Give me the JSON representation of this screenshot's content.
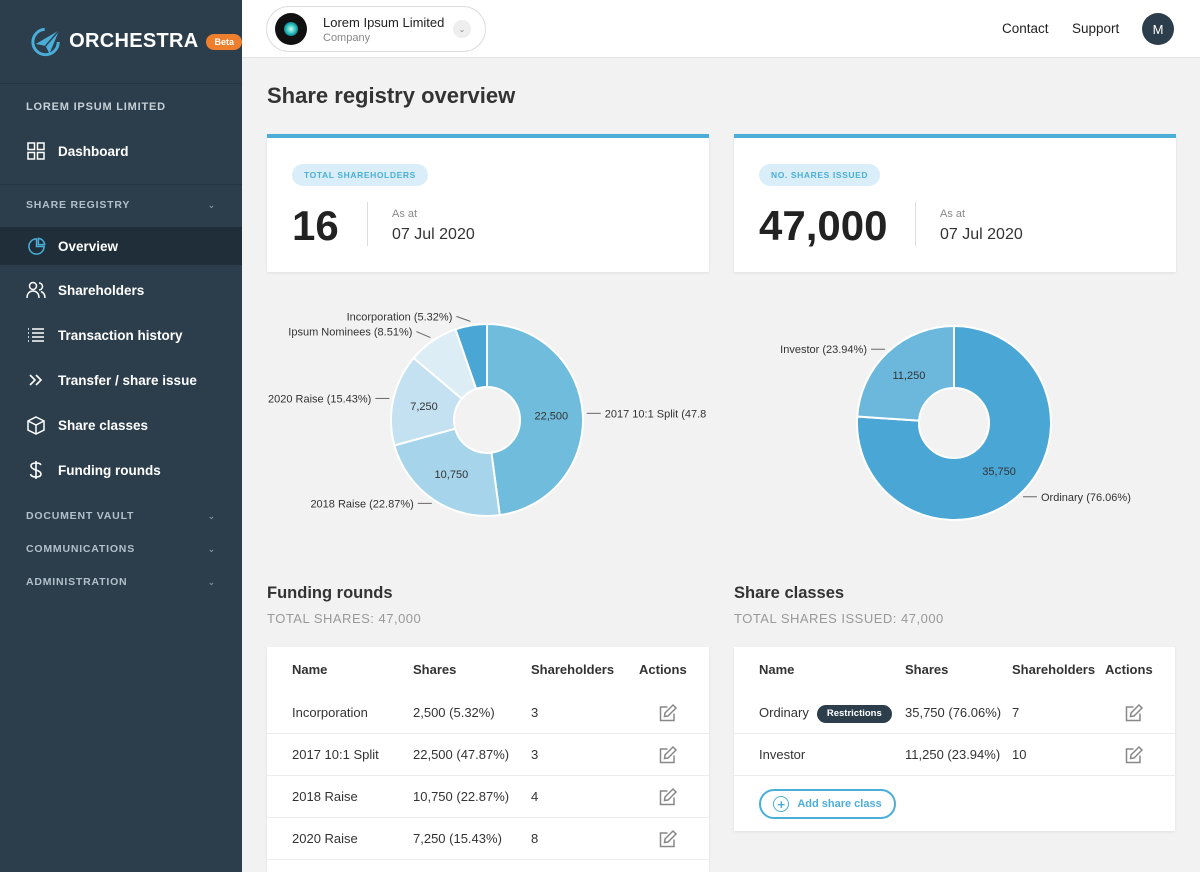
{
  "brand": {
    "name": "ORCHESTRA",
    "badge": "Beta"
  },
  "sidebar": {
    "org_label": "LOREM IPSUM LIMITED",
    "dashboard": "Dashboard",
    "share_registry_label": "SHARE REGISTRY",
    "items": [
      {
        "label": "Overview",
        "icon": "pie-chart-icon",
        "active": true
      },
      {
        "label": "Shareholders",
        "icon": "users-icon"
      },
      {
        "label": "Transaction history",
        "icon": "list-icon"
      },
      {
        "label": "Transfer / share issue",
        "icon": "double-chevron-right-icon"
      },
      {
        "label": "Share classes",
        "icon": "cube-icon"
      },
      {
        "label": "Funding rounds",
        "icon": "dollar-icon"
      }
    ],
    "sections": [
      "DOCUMENT VAULT",
      "COMMUNICATIONS",
      "ADMINISTRATION"
    ]
  },
  "topbar": {
    "company_name": "Lorem Ipsum Limited",
    "company_type": "Company",
    "contact": "Contact",
    "support": "Support",
    "avatar_initial": "M"
  },
  "page": {
    "title": "Share registry overview"
  },
  "stats": {
    "shareholders": {
      "label": "TOTAL SHAREHOLDERS",
      "value": "16",
      "asat_label": "As at",
      "date": "07 Jul 2020"
    },
    "shares": {
      "label": "NO. SHARES ISSUED",
      "value": "47,000",
      "asat_label": "As at",
      "date": "07 Jul 2020"
    }
  },
  "chart_data": [
    {
      "type": "pie",
      "categories": [
        "2017 10:1 Split",
        "2018 Raise",
        "2020 Raise",
        "Ipsum Nominees",
        "Incorporation"
      ],
      "values": [
        22500,
        10750,
        7250,
        4000,
        2500
      ],
      "labels": [
        "2017 10:1 Split (47.8",
        "2018 Raise (22.87%)",
        "2020 Raise (15.43%)",
        "Ipsum Nominees (8.51%)",
        "Incorporation (5.32%)"
      ],
      "slice_labels": [
        "22,500",
        "10,750",
        "7,250",
        "",
        ""
      ],
      "colors": [
        "#70bcdc",
        "#a6d4ea",
        "#c3e1f0",
        "#dcedf6",
        "#4aa6d5"
      ]
    },
    {
      "type": "pie",
      "categories": [
        "Ordinary",
        "Investor"
      ],
      "values": [
        35750,
        11250
      ],
      "labels": [
        "Ordinary (76.06%)",
        "Investor (23.94%)"
      ],
      "slice_labels": [
        "35,750",
        "11,250"
      ],
      "colors": [
        "#4aa6d5",
        "#6cb8dc"
      ]
    }
  ],
  "funding": {
    "title": "Funding rounds",
    "subtitle": "TOTAL SHARES: 47,000",
    "headers": [
      "Name",
      "Shares",
      "Shareholders",
      "Actions"
    ],
    "rows": [
      {
        "name": "Incorporation",
        "shares": "2,500 (5.32%)",
        "holders": "3"
      },
      {
        "name": "2017 10:1 Split",
        "shares": "22,500 (47.87%)",
        "holders": "3"
      },
      {
        "name": "2018 Raise",
        "shares": "10,750 (22.87%)",
        "holders": "4"
      },
      {
        "name": "2020 Raise",
        "shares": "7,250 (15.43%)",
        "holders": "8"
      }
    ]
  },
  "classes": {
    "title": "Share classes",
    "subtitle": "TOTAL SHARES ISSUED: 47,000",
    "headers": [
      "Name",
      "Shares",
      "Shareholders",
      "Actions"
    ],
    "rows": [
      {
        "name": "Ordinary",
        "badge": "Restrictions",
        "shares": "35,750 (76.06%)",
        "holders": "7"
      },
      {
        "name": "Investor",
        "badge": "",
        "shares": "11,250 (23.94%)",
        "holders": "10"
      }
    ],
    "add_label": "Add share class"
  }
}
